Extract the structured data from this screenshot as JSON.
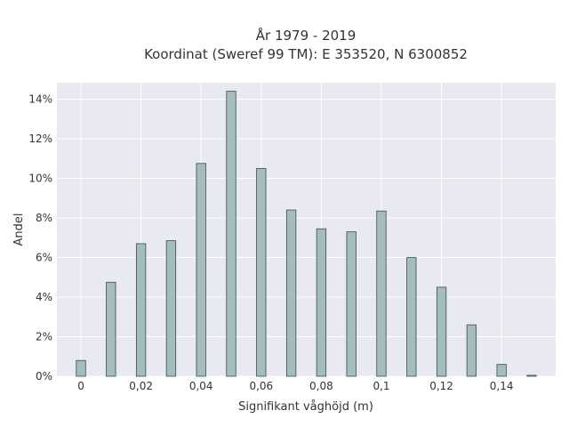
{
  "chart_data": {
    "type": "bar",
    "title": "År 1979 - 2019",
    "subtitle": "Koordinat (Sweref 99 TM): E 353520, N 6300852",
    "xlabel": "Signifikant våghöjd (m)",
    "ylabel": "Andel",
    "x": [
      0,
      0.01,
      0.02,
      0.03,
      0.04,
      0.05,
      0.06,
      0.07,
      0.08,
      0.09,
      0.1,
      0.11,
      0.12,
      0.13,
      0.14,
      0.15
    ],
    "values": [
      0.8,
      4.75,
      6.7,
      6.85,
      10.75,
      14.4,
      10.5,
      8.4,
      7.45,
      7.3,
      8.35,
      6.0,
      4.5,
      2.6,
      0.6,
      0.05
    ],
    "xlim": [
      -0.008,
      0.158
    ],
    "ylim": [
      0,
      14.2
    ],
    "xticks": [
      0,
      0.02,
      0.04,
      0.06,
      0.08,
      0.1,
      0.12,
      0.14
    ],
    "xtick_labels": [
      "0",
      "0,02",
      "0,04",
      "0,06",
      "0,08",
      "0,1",
      "0,12",
      "0,14"
    ],
    "yticks": [
      0,
      2,
      4,
      6,
      8,
      10,
      12,
      14
    ],
    "ytick_labels": [
      "0%",
      "2%",
      "4%",
      "6%",
      "8%",
      "10%",
      "12%",
      "14%"
    ],
    "grid": true,
    "colors": {
      "bar_fill": "#a3bcbc",
      "bar_stroke": "#3d4d4d",
      "plot_bg": "#e9e9f1",
      "grid": "#ffffff"
    }
  }
}
